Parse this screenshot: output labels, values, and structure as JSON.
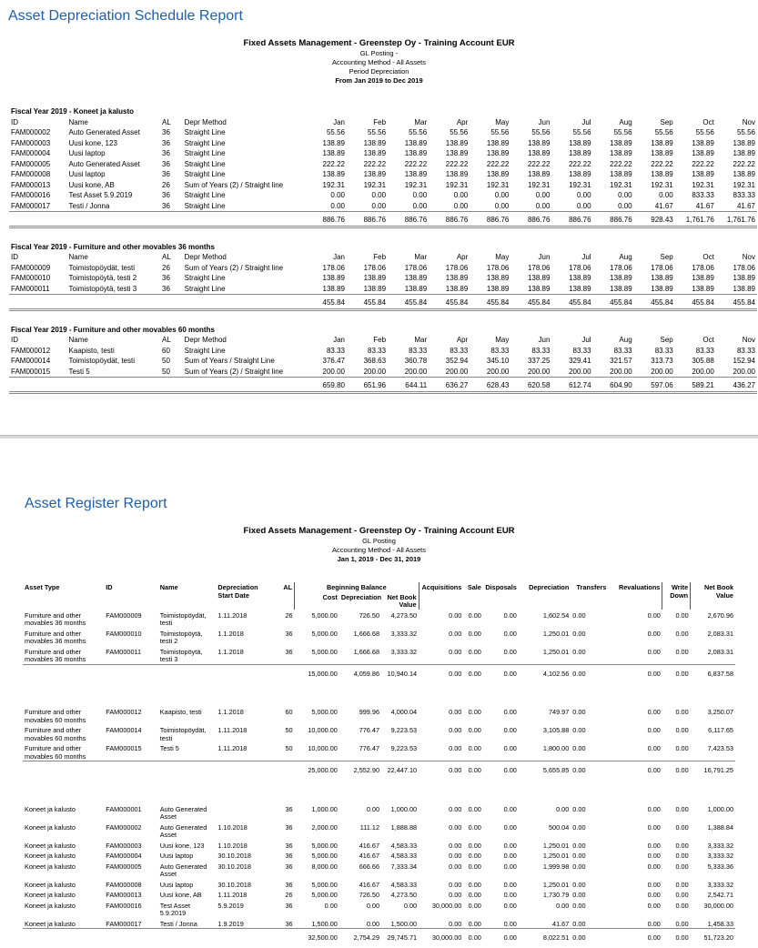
{
  "schedule": {
    "title": "Asset Depreciation Schedule Report",
    "header": [
      "Fixed Assets Management - Greenstep Oy - Training Account EUR",
      "GL Posting -",
      "Accounting Method - All Assets",
      "Period Depreciation",
      "From Jan 2019 to Dec 2019"
    ],
    "columns": [
      "ID",
      "Name",
      "AL",
      "Depr Method",
      "Jan",
      "Feb",
      "Mar",
      "Apr",
      "May",
      "Jun",
      "Jul",
      "Aug",
      "Sep",
      "Oct",
      "Nov"
    ],
    "groups": [
      {
        "title": "Fiscal Year 2019 - Koneet ja kalusto",
        "rows": [
          {
            "id": "FAM000002",
            "name": "Auto Generated Asset",
            "al": "36",
            "method": "Straight Line",
            "values": [
              "55.56",
              "55.56",
              "55.56",
              "55.56",
              "55.56",
              "55.56",
              "55.56",
              "55.56",
              "55.56",
              "55.56",
              "55.56"
            ]
          },
          {
            "id": "FAM000003",
            "name": "Uusi kone, 123",
            "al": "36",
            "method": "Straight Line",
            "values": [
              "138.89",
              "138.89",
              "138.89",
              "138.89",
              "138.89",
              "138.89",
              "138.89",
              "138.89",
              "138.89",
              "138.89",
              "138.89"
            ]
          },
          {
            "id": "FAM000004",
            "name": "Uusi laptop",
            "al": "36",
            "method": "Straight Line",
            "values": [
              "138.89",
              "138.89",
              "138.89",
              "138.89",
              "138.89",
              "138.89",
              "138.89",
              "138.89",
              "138.89",
              "138.89",
              "138.89"
            ]
          },
          {
            "id": "FAM000005",
            "name": "Auto Generated Asset",
            "al": "36",
            "method": "Straight Line",
            "values": [
              "222.22",
              "222.22",
              "222.22",
              "222.22",
              "222.22",
              "222.22",
              "222.22",
              "222.22",
              "222.22",
              "222.22",
              "222.22"
            ]
          },
          {
            "id": "FAM000008",
            "name": "Uusi laptop",
            "al": "36",
            "method": "Straight Line",
            "values": [
              "138.89",
              "138.89",
              "138.89",
              "138.89",
              "138.89",
              "138.89",
              "138.89",
              "138.89",
              "138.89",
              "138.89",
              "138.89"
            ]
          },
          {
            "id": "FAM000013",
            "name": "Uusi kone, AB",
            "al": "26",
            "method": "Sum of Years (2) / Straight line",
            "values": [
              "192.31",
              "192.31",
              "192.31",
              "192.31",
              "192.31",
              "192.31",
              "192.31",
              "192.31",
              "192.31",
              "192.31",
              "192.31"
            ]
          },
          {
            "id": "FAM000016",
            "name": "Test Asset 5.9.2019",
            "al": "36",
            "method": "Straight Line",
            "values": [
              "0.00",
              "0.00",
              "0.00",
              "0.00",
              "0.00",
              "0.00",
              "0.00",
              "0.00",
              "0.00",
              "833.33",
              "833.33"
            ]
          },
          {
            "id": "FAM000017",
            "name": "Testi / Jonna",
            "al": "36",
            "method": "Straight Line",
            "values": [
              "0.00",
              "0.00",
              "0.00",
              "0.00",
              "0.00",
              "0.00",
              "0.00",
              "0.00",
              "41.67",
              "41.67",
              "41.67"
            ]
          }
        ],
        "totals": [
          "886.76",
          "886.76",
          "886.76",
          "886.76",
          "886.76",
          "886.76",
          "886.76",
          "886.76",
          "928.43",
          "1,761.76",
          "1,761.76"
        ]
      },
      {
        "title": "Fiscal Year 2019 - Furniture and other movables 36 months",
        "rows": [
          {
            "id": "FAM000009",
            "name": "Toimistopöydät, testi",
            "al": "26",
            "method": "Sum of Years (2) / Straight line",
            "values": [
              "178.06",
              "178.06",
              "178.06",
              "178.06",
              "178.06",
              "178.06",
              "178.06",
              "178.06",
              "178.06",
              "178.06",
              "178.06"
            ]
          },
          {
            "id": "FAM000010",
            "name": "Toimistopöytä, testi 2",
            "al": "36",
            "method": "Straight Line",
            "values": [
              "138.89",
              "138.89",
              "138.89",
              "138.89",
              "138.89",
              "138.89",
              "138.89",
              "138.89",
              "138.89",
              "138.89",
              "138.89"
            ]
          },
          {
            "id": "FAM000011",
            "name": "Toimistopöytä, testi 3",
            "al": "36",
            "method": "Straight Line",
            "values": [
              "138.89",
              "138.89",
              "138.89",
              "138.89",
              "138.89",
              "138.89",
              "138.89",
              "138.89",
              "138.89",
              "138.89",
              "138.89"
            ]
          }
        ],
        "totals": [
          "455.84",
          "455.84",
          "455.84",
          "455.84",
          "455.84",
          "455.84",
          "455.84",
          "455.84",
          "455.84",
          "455.84",
          "455.84"
        ]
      },
      {
        "title": "Fiscal Year 2019 - Furniture and other movables 60 months",
        "rows": [
          {
            "id": "FAM000012",
            "name": "Kaapisto, testi",
            "al": "60",
            "method": "Straight Line",
            "values": [
              "83.33",
              "83.33",
              "83.33",
              "83.33",
              "83.33",
              "83.33",
              "83.33",
              "83.33",
              "83.33",
              "83.33",
              "83.33"
            ]
          },
          {
            "id": "FAM000014",
            "name": "Toimistopöydät, testi",
            "al": "50",
            "method": "Sum of Years / Straight Line",
            "values": [
              "376.47",
              "368.63",
              "360.78",
              "352.94",
              "345.10",
              "337.25",
              "329.41",
              "321.57",
              "313.73",
              "305.88",
              "152.94"
            ]
          },
          {
            "id": "FAM000015",
            "name": "Testi 5",
            "al": "50",
            "method": "Sum of Years (2) / Straight line",
            "values": [
              "200.00",
              "200.00",
              "200.00",
              "200.00",
              "200.00",
              "200.00",
              "200.00",
              "200.00",
              "200.00",
              "200.00",
              "200.00"
            ]
          }
        ],
        "totals": [
          "659.80",
          "651.96",
          "644.11",
          "636.27",
          "628.43",
          "620.58",
          "612.74",
          "604.90",
          "597.06",
          "589.21",
          "436.27"
        ]
      }
    ]
  },
  "register": {
    "title": "Asset Register Report",
    "header": [
      "Fixed Assets Management - Greenstep Oy - Training Account EUR",
      "GL Posting",
      "Accounting Method - All Assets",
      "Jan 1, 2019 - Dec 31, 2019"
    ],
    "columns": [
      "Asset Type",
      "ID",
      "Name",
      "Depreciation Start Date",
      "AL"
    ],
    "balance": {
      "title": "Beginning Balance",
      "columns": [
        "Cost",
        "Depreciation",
        "Net Book Value"
      ]
    },
    "more_columns": [
      "Acquisitions",
      "Sale",
      "Disposals",
      "Depreciation",
      "Transfers",
      "Revaluations",
      "Write Down",
      "Net Book Value"
    ],
    "groups": [
      {
        "rows": [
          [
            "Furniture and other movables 36 months",
            "FAM000009",
            "Toimistopöydät, testi",
            "1.11.2018",
            "26",
            "5,000.00",
            "726.50",
            "4,273.50",
            "0.00",
            "0.00",
            "0.00",
            "1,602.54",
            "0.00",
            "0.00",
            "0.00",
            "2,670.96"
          ],
          [
            "Furniture and other movables 36 months",
            "FAM000010",
            "Toimistopöytä, testi 2",
            "1.1.2018",
            "36",
            "5,000.00",
            "1,666.68",
            "3,333.32",
            "0.00",
            "0.00",
            "0.00",
            "1,250.01",
            "0.00",
            "0.00",
            "0.00",
            "2,083.31"
          ],
          [
            "Furniture and other movables 36 months",
            "FAM000011",
            "Toimistopöytä, testi 3",
            "1.1.2018",
            "36",
            "5,000.00",
            "1,666.68",
            "3,333.32",
            "0.00",
            "0.00",
            "0.00",
            "1,250.01",
            "0.00",
            "0.00",
            "0.00",
            "2,083.31"
          ]
        ],
        "totals": [
          "15,000.00",
          "4,059.86",
          "10,940.14",
          "0.00",
          "0.00",
          "0.00",
          "4,102.56",
          "0.00",
          "0.00",
          "0.00",
          "6,837.58"
        ]
      },
      {
        "rows": [
          [
            "Furniture and other movables 60 months",
            "FAM000012",
            "Kaapisto, testi",
            "1.1.2018",
            "60",
            "5,000.00",
            "999.96",
            "4,000.04",
            "0.00",
            "0.00",
            "0.00",
            "749.97",
            "0.00",
            "0.00",
            "0.00",
            "3,250.07"
          ],
          [
            "Furniture and other movables 60 months",
            "FAM000014",
            "Toimistopöydät, testi",
            "1.11.2018",
            "50",
            "10,000.00",
            "776.47",
            "9,223.53",
            "0.00",
            "0.00",
            "0.00",
            "3,105.88",
            "0.00",
            "0.00",
            "0.00",
            "6,117.65"
          ],
          [
            "Furniture and other movables 60 months",
            "FAM000015",
            "Testi 5",
            "1.11.2018",
            "50",
            "10,000.00",
            "776.47",
            "9,223.53",
            "0.00",
            "0.00",
            "0.00",
            "1,800.00",
            "0.00",
            "0.00",
            "0.00",
            "7,423.53"
          ]
        ],
        "totals": [
          "25,000.00",
          "2,552.90",
          "22,447.10",
          "0.00",
          "0.00",
          "0.00",
          "5,655.85",
          "0.00",
          "0.00",
          "0.00",
          "16,791.25"
        ]
      },
      {
        "rows": [
          [
            "Koneet ja kalusto",
            "FAM000001",
            "Auto Generated Asset",
            null,
            "36",
            "1,000.00",
            "0.00",
            "1,000.00",
            "0.00",
            "0.00",
            "0.00",
            "0.00",
            "0.00",
            "0.00",
            "0.00",
            "1,000.00"
          ],
          [
            "Koneet ja kalusto",
            "FAM000002",
            "Auto Generated Asset",
            "1.10.2018",
            "36",
            "2,000.00",
            "111.12",
            "1,888.88",
            "0.00",
            "0.00",
            "0.00",
            "500.04",
            "0.00",
            "0.00",
            "0.00",
            "1,388.84"
          ],
          [
            "Koneet ja kalusto",
            "FAM000003",
            "Uusi kone, 123",
            "1.10.2018",
            "36",
            "5,000.00",
            "416.67",
            "4,583.33",
            "0.00",
            "0.00",
            "0.00",
            "1,250.01",
            "0.00",
            "0.00",
            "0.00",
            "3,333.32"
          ],
          [
            "Koneet ja kalusto",
            "FAM000004",
            "Uusi laptop",
            "30.10.2018",
            "36",
            "5,000.00",
            "416.67",
            "4,583.33",
            "0.00",
            "0.00",
            "0.00",
            "1,250.01",
            "0.00",
            "0.00",
            "0.00",
            "3,333.32"
          ],
          [
            "Koneet ja kalusto",
            "FAM000005",
            "Auto Generated Asset",
            "30.10.2018",
            "36",
            "8,000.00",
            "666.66",
            "7,333.34",
            "0.00",
            "0.00",
            "0.00",
            "1,999.98",
            "0.00",
            "0.00",
            "0.00",
            "5,333.36"
          ],
          [
            "Koneet ja kalusto",
            "FAM000008",
            "Uusi laptop",
            "30.10.2018",
            "36",
            "5,000.00",
            "416.67",
            "4,583.33",
            "0.00",
            "0.00",
            "0.00",
            "1,250.01",
            "0.00",
            "0.00",
            "0.00",
            "3,333.32"
          ],
          [
            "Koneet ja kalusto",
            "FAM000013",
            "Uusi kone, AB",
            "1.11.2018",
            "26",
            "5,000.00",
            "726.50",
            "4,273.50",
            "0.00",
            "0.00",
            "0.00",
            "1,730.79",
            "0.00",
            "0.00",
            "0.00",
            "2,542.71"
          ],
          [
            "Koneet ja kalusto",
            "FAM000016",
            "Test Asset 5.9.2019",
            "5.9.2019",
            "36",
            "0.00",
            "0.00",
            "0.00",
            "30,000.00",
            "0.00",
            "0.00",
            "0.00",
            "0.00",
            "0.00",
            "0.00",
            "30,000.00"
          ],
          [
            "Koneet ja kalusto",
            "FAM000017",
            "Testi / Jonna",
            "1.9.2019",
            "36",
            "1,500.00",
            "0.00",
            "1,500.00",
            "0.00",
            "0.00",
            "0.00",
            "41.67",
            "0.00",
            "0.00",
            "0.00",
            "1,458.33"
          ]
        ],
        "totals": [
          "32,500.00",
          "2,754.29",
          "29,745.71",
          "30,000.00",
          "0.00",
          "0.00",
          "8,022.51",
          "0.00",
          "0.00",
          "0.00",
          "51,723.20"
        ]
      }
    ]
  }
}
